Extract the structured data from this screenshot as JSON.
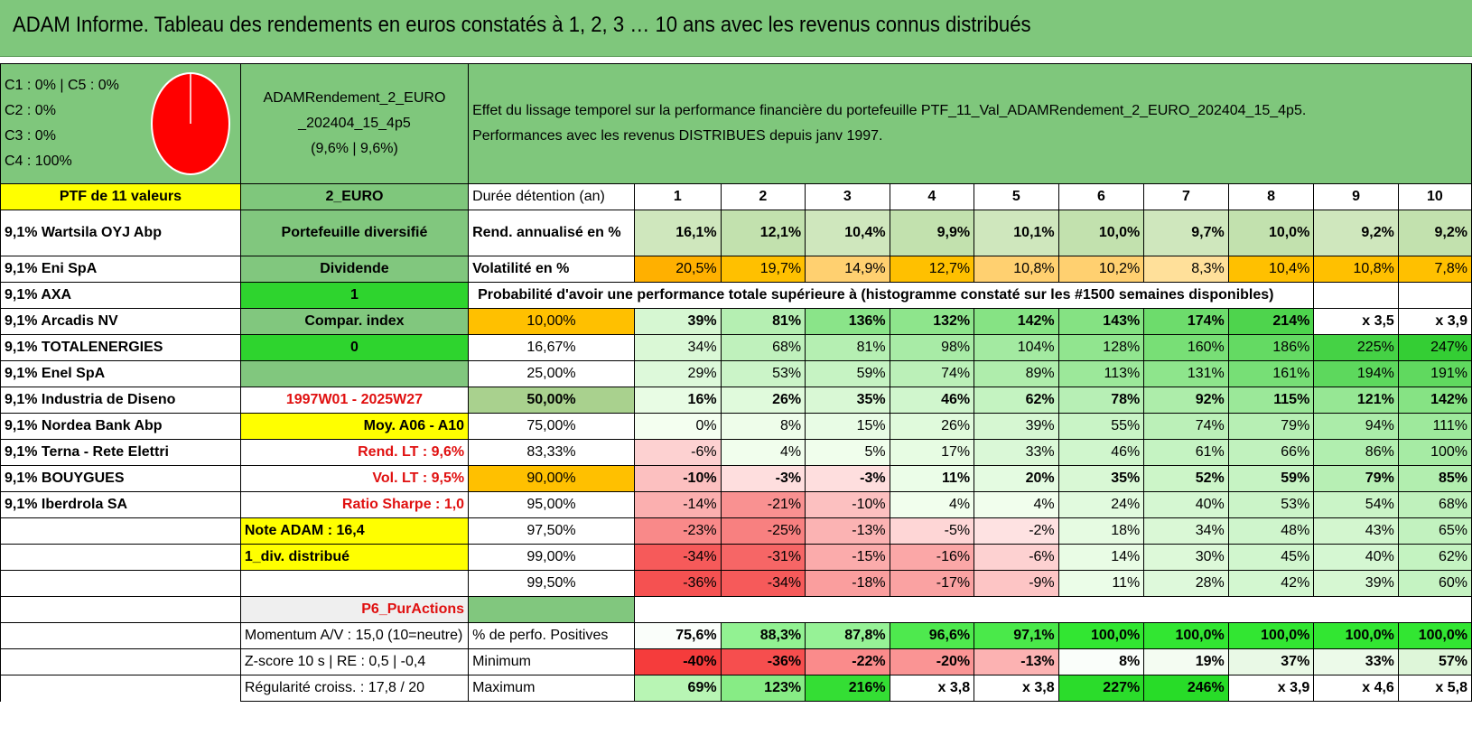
{
  "title": "ADAM Informe. Tableau des rendements en euros constatés à 1, 2, 3 … 10 ans avec les revenus connus distribués",
  "classes": [
    "C1 : 0% | C5 : 0%",
    "C2 : 0%",
    "C3 : 0%",
    "C4 : 100%"
  ],
  "pie": {
    "color": "#ff0000",
    "share_c4": 1.0
  },
  "fund": {
    "name1": "ADAMRendement_2_EURO",
    "name2": "_202404_15_4p5",
    "perf": "(9,6% | 9,6%)"
  },
  "effect": {
    "line1": "Effet du lissage temporel sur la performance financière du portefeuille PTF_11_Val_ADAMRendement_2_EURO_202404_15_4p5.",
    "line2": "Performances avec les revenus DISTRIBUES depuis janv 1997."
  },
  "ptf_header": "PTF de 11 valeurs",
  "currency": "2_EURO",
  "duration_label": "Durée détention (an)",
  "years": [
    "1",
    "2",
    "3",
    "4",
    "5",
    "6",
    "7",
    "8",
    "9",
    "10"
  ],
  "holdings": [
    "9,1% Wartsila OYJ Abp",
    "9,1% Eni SpA",
    "9,1% AXA",
    "9,1% Arcadis NV",
    "9,1% TOTALENERGIES",
    "9,1% Enel SpA",
    "9,1% Industria de Diseno",
    "9,1% Nordea Bank Abp",
    "9,1% Terna - Rete Elettri",
    "9,1% BOUYGUES",
    "9,1% Iberdrola SA"
  ],
  "col2": {
    "diversified": "Portefeuille diversifié",
    "dividend_label": "Dividende",
    "dividend_value": "1",
    "compar_label": "Compar. index",
    "compar_value": "0",
    "empty": "",
    "period": "1997W01 - 2025W27",
    "moy": "Moy. A06 - A10",
    "rend_lt": "Rend. LT : 9,6%",
    "vol_lt": "Vol. LT : 9,5%",
    "sharpe": "Ratio Sharpe : 1,0",
    "note": "Note ADAM : 16,4",
    "div_distrib": "1_div. distribué",
    "p6": "P6_PurActions"
  },
  "rend": {
    "label": "Rend. annualisé en %",
    "values": [
      "16,1%",
      "12,1%",
      "10,4%",
      "9,9%",
      "10,1%",
      "10,0%",
      "9,7%",
      "10,0%",
      "9,2%",
      "9,2%"
    ]
  },
  "vol": {
    "label": "Volatilité en %",
    "values": [
      "20,5%",
      "19,7%",
      "14,9%",
      "12,7%",
      "10,8%",
      "10,2%",
      "8,3%",
      "10,4%",
      "10,8%",
      "7,8%"
    ]
  },
  "prob_title": "Probabilité d'avoir une performance totale supérieure à (histogramme constaté sur les #1500 semaines disponibles)",
  "prob_rows": [
    {
      "p": "10,00%",
      "v": [
        "39%",
        "81%",
        "136%",
        "132%",
        "142%",
        "143%",
        "174%",
        "214%",
        "x 3,5",
        "x 3,9"
      ]
    },
    {
      "p": "16,67%",
      "v": [
        "34%",
        "68%",
        "81%",
        "98%",
        "104%",
        "128%",
        "160%",
        "186%",
        "225%",
        "247%"
      ]
    },
    {
      "p": "25,00%",
      "v": [
        "29%",
        "53%",
        "59%",
        "74%",
        "89%",
        "113%",
        "131%",
        "161%",
        "194%",
        "191%"
      ]
    },
    {
      "p": "50,00%",
      "v": [
        "16%",
        "26%",
        "35%",
        "46%",
        "62%",
        "78%",
        "92%",
        "115%",
        "121%",
        "142%"
      ]
    },
    {
      "p": "75,00%",
      "v": [
        "0%",
        "8%",
        "15%",
        "26%",
        "39%",
        "55%",
        "74%",
        "79%",
        "94%",
        "111%"
      ]
    },
    {
      "p": "83,33%",
      "v": [
        "-6%",
        "4%",
        "5%",
        "17%",
        "33%",
        "46%",
        "61%",
        "66%",
        "86%",
        "100%"
      ]
    },
    {
      "p": "90,00%",
      "v": [
        "-10%",
        "-3%",
        "-3%",
        "11%",
        "20%",
        "35%",
        "52%",
        "59%",
        "79%",
        "85%"
      ]
    },
    {
      "p": "95,00%",
      "v": [
        "-14%",
        "-21%",
        "-10%",
        "4%",
        "4%",
        "24%",
        "40%",
        "53%",
        "54%",
        "68%"
      ]
    },
    {
      "p": "97,50%",
      "v": [
        "-23%",
        "-25%",
        "-13%",
        "-5%",
        "-2%",
        "18%",
        "34%",
        "48%",
        "43%",
        "65%"
      ]
    },
    {
      "p": "99,00%",
      "v": [
        "-34%",
        "-31%",
        "-15%",
        "-16%",
        "-6%",
        "14%",
        "30%",
        "45%",
        "40%",
        "62%"
      ]
    },
    {
      "p": "99,50%",
      "v": [
        "-36%",
        "-34%",
        "-18%",
        "-17%",
        "-9%",
        "11%",
        "28%",
        "42%",
        "39%",
        "60%"
      ]
    }
  ],
  "bottom": {
    "momentum": "Momentum A/V : 15,0 (10=neutre)",
    "zscore": "Z-score 10 s | RE : 0,5 | -0,4",
    "regul": "Régularité croiss. : 17,8 / 20",
    "pos_label": "% de perfo. Positives",
    "pos": [
      "75,6%",
      "88,3%",
      "87,8%",
      "96,6%",
      "97,1%",
      "100,0%",
      "100,0%",
      "100,0%",
      "100,0%",
      "100,0%"
    ],
    "min_label": "Minimum",
    "min": [
      "-40%",
      "-36%",
      "-22%",
      "-20%",
      "-13%",
      "8%",
      "19%",
      "37%",
      "33%",
      "57%"
    ],
    "max_label": "Maximum",
    "max": [
      "69%",
      "123%",
      "216%",
      "x 3,8",
      "x 3,8",
      "227%",
      "246%",
      "x 3,9",
      "x 4,6",
      "x 5,8"
    ]
  },
  "colors": {
    "banner": "#7fc77c",
    "bright_green": "#2ed42e",
    "yellow": "#ffff00",
    "orange": "#ffc000",
    "red": "#ff0000"
  }
}
